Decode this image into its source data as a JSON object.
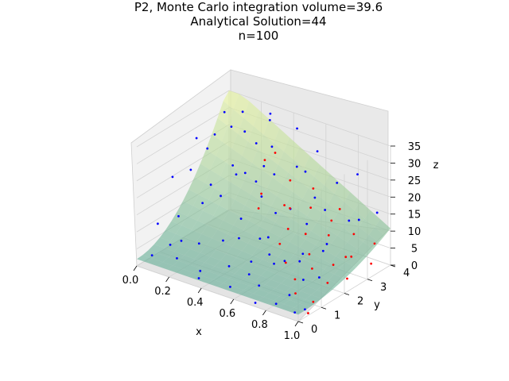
{
  "chart_data": {
    "type": "scatter",
    "title_lines": [
      "P2, Monte Carlo integration volume=39.6",
      "Analytical Solution=44",
      "n=100"
    ],
    "xlabel": "x",
    "ylabel": "y",
    "zlabel": "z",
    "xlim": [
      0,
      1
    ],
    "ylim": [
      0,
      4
    ],
    "zlim": [
      0,
      35
    ],
    "x_ticks": [
      "0.0",
      "0.2",
      "0.4",
      "0.6",
      "0.8",
      "1.0"
    ],
    "y_ticks": [
      "0",
      "1",
      "2",
      "3",
      "4"
    ],
    "z_ticks": [
      "0",
      "5",
      "10",
      "15",
      "20",
      "25",
      "30",
      "35"
    ],
    "grid": true,
    "surface": {
      "description_hidden": true,
      "colormap": [
        "#5aa894",
        "#e9f59a"
      ],
      "alpha": 0.6
    },
    "series": [
      {
        "color": "#0000ff",
        "points": [
          [
            0.08,
            0.1,
            4
          ],
          [
            0.15,
            0.4,
            7
          ],
          [
            0.22,
            0.2,
            5
          ],
          [
            0.3,
            0.6,
            9
          ],
          [
            0.35,
            0.3,
            3
          ],
          [
            0.42,
            0.8,
            11
          ],
          [
            0.5,
            0.5,
            6
          ],
          [
            0.55,
            0.2,
            2
          ],
          [
            0.62,
            1.0,
            14
          ],
          [
            0.7,
            0.4,
            4
          ],
          [
            0.75,
            0.7,
            10
          ],
          [
            0.82,
            0.3,
            1
          ],
          [
            0.88,
            0.9,
            12
          ],
          [
            0.95,
            0.2,
            1
          ],
          [
            0.05,
            1.2,
            22
          ],
          [
            0.12,
            1.5,
            24
          ],
          [
            0.18,
            1.8,
            30
          ],
          [
            0.25,
            1.1,
            18
          ],
          [
            0.32,
            1.4,
            20
          ],
          [
            0.4,
            1.9,
            26
          ],
          [
            0.46,
            1.3,
            16
          ],
          [
            0.53,
            1.7,
            22
          ],
          [
            0.6,
            1.5,
            12
          ],
          [
            0.68,
            1.9,
            20
          ],
          [
            0.73,
            1.3,
            8
          ],
          [
            0.8,
            1.6,
            10
          ],
          [
            0.86,
            1.2,
            5
          ],
          [
            0.92,
            1.8,
            14
          ],
          [
            0.07,
            2.1,
            30
          ],
          [
            0.14,
            2.4,
            31
          ],
          [
            0.2,
            2.7,
            33
          ],
          [
            0.28,
            2.2,
            25
          ],
          [
            0.34,
            2.8,
            30
          ],
          [
            0.41,
            2.3,
            22
          ],
          [
            0.48,
            2.6,
            24
          ],
          [
            0.56,
            2.1,
            16
          ],
          [
            0.63,
            2.9,
            26
          ],
          [
            0.71,
            2.4,
            14
          ],
          [
            0.78,
            2.7,
            18
          ],
          [
            0.84,
            2.2,
            9
          ],
          [
            0.9,
            2.9,
            16
          ],
          [
            0.1,
            3.1,
            34
          ],
          [
            0.17,
            3.4,
            34
          ],
          [
            0.24,
            3.0,
            31
          ],
          [
            0.31,
            3.6,
            33
          ],
          [
            0.38,
            3.2,
            28
          ],
          [
            0.45,
            3.8,
            32
          ],
          [
            0.52,
            3.3,
            24
          ],
          [
            0.59,
            3.7,
            28
          ],
          [
            0.66,
            3.1,
            18
          ],
          [
            0.74,
            3.5,
            22
          ],
          [
            0.81,
            3.9,
            24
          ],
          [
            0.89,
            3.4,
            14
          ],
          [
            0.96,
            3.7,
            16
          ],
          [
            0.03,
            0.7,
            10
          ],
          [
            0.13,
            0.9,
            13
          ],
          [
            0.23,
            1.6,
            21
          ],
          [
            0.33,
            2.0,
            24
          ],
          [
            0.43,
            2.5,
            26
          ],
          [
            0.58,
            0.9,
            7
          ],
          [
            0.65,
            1.2,
            9
          ],
          [
            0.72,
            0.1,
            0.5
          ],
          [
            0.86,
            0.6,
            3
          ],
          [
            0.97,
            0.5,
            1
          ],
          [
            0.27,
            3.9,
            33
          ],
          [
            0.49,
            1.0,
            12
          ],
          [
            0.37,
            0.1,
            2
          ],
          [
            0.61,
            0.6,
            5
          ],
          [
            0.19,
            0.6,
            8
          ],
          [
            0.93,
            1.4,
            6
          ]
        ]
      },
      {
        "color": "#ff0000",
        "points": [
          [
            0.3,
            3.9,
            22
          ],
          [
            0.45,
            3.5,
            18
          ],
          [
            0.55,
            3.8,
            16
          ],
          [
            0.62,
            3.2,
            14
          ],
          [
            0.7,
            3.9,
            12
          ],
          [
            0.76,
            3.0,
            9
          ],
          [
            0.83,
            3.6,
            8
          ],
          [
            0.88,
            2.9,
            5
          ],
          [
            0.93,
            3.8,
            6
          ],
          [
            0.98,
            3.3,
            3
          ],
          [
            0.5,
            2.9,
            14
          ],
          [
            0.58,
            2.5,
            10
          ],
          [
            0.66,
            2.7,
            9
          ],
          [
            0.74,
            2.3,
            6
          ],
          [
            0.8,
            2.0,
            4
          ],
          [
            0.86,
            2.5,
            4
          ],
          [
            0.91,
            1.9,
            2
          ],
          [
            0.96,
            2.4,
            2
          ],
          [
            0.4,
            2.6,
            17
          ],
          [
            0.52,
            3.0,
            13
          ],
          [
            0.6,
            2.0,
            8
          ],
          [
            0.68,
            1.7,
            5
          ],
          [
            0.78,
            1.4,
            3
          ],
          [
            0.84,
            1.0,
            1.5
          ],
          [
            0.95,
            1.0,
            0.8
          ],
          [
            0.99,
            0.5,
            0.2
          ],
          [
            0.35,
            3.1,
            24
          ],
          [
            0.44,
            2.2,
            15
          ],
          [
            0.72,
            3.4,
            11
          ],
          [
            0.9,
            3.0,
            5
          ]
        ]
      }
    ]
  }
}
